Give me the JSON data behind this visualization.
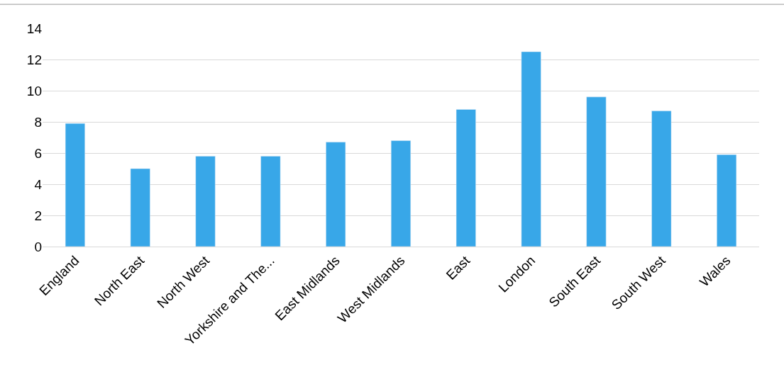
{
  "chart_data": {
    "type": "bar",
    "categories": [
      "England",
      "North East",
      "North West",
      "Yorkshire and The...",
      "East Midlands",
      "West Midlands",
      "East",
      "London",
      "South East",
      "South West",
      "Wales"
    ],
    "values": [
      7.9,
      5.0,
      5.8,
      5.8,
      6.7,
      6.8,
      8.8,
      12.5,
      9.6,
      8.7,
      5.9
    ],
    "color": "#38a7e8",
    "ylim": [
      0,
      14
    ],
    "yticks": [
      0,
      2,
      4,
      6,
      8,
      10,
      12,
      14
    ],
    "grid": "y"
  }
}
